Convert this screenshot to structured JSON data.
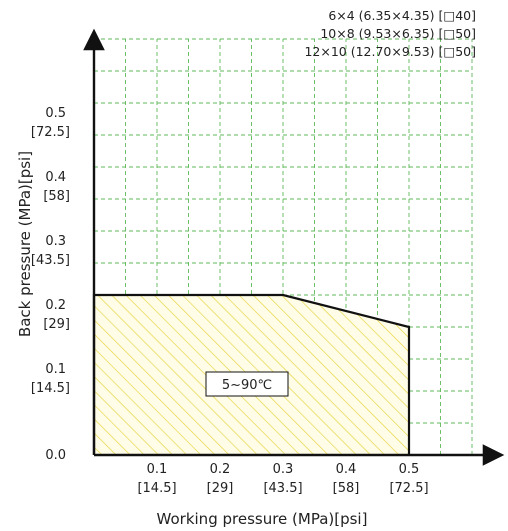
{
  "chart_data": {
    "type": "area",
    "title": "",
    "xlabel": "Working pressure (MPa)[psi]",
    "ylabel": "Back pressure (MPa)[psi]",
    "xlim": [
      0,
      0.6
    ],
    "ylim": [
      0,
      0.65
    ],
    "x_ticks": [
      {
        "value": 0.1,
        "mpa": "0.1",
        "psi": "[14.5]"
      },
      {
        "value": 0.2,
        "mpa": "0.2",
        "psi": "[29]"
      },
      {
        "value": 0.3,
        "mpa": "0.3",
        "psi": "[43.5]"
      },
      {
        "value": 0.4,
        "mpa": "0.4",
        "psi": "[58]"
      },
      {
        "value": 0.5,
        "mpa": "0.5",
        "psi": "[72.5]"
      }
    ],
    "y_ticks": [
      {
        "value": 0.0,
        "mpa": "0.0",
        "psi": ""
      },
      {
        "value": 0.1,
        "mpa": "0.1",
        "psi": "[14.5]"
      },
      {
        "value": 0.2,
        "mpa": "0.2",
        "psi": "[29]"
      },
      {
        "value": 0.3,
        "mpa": "0.3",
        "psi": "[43.5]"
      },
      {
        "value": 0.4,
        "mpa": "0.4",
        "psi": "[58]"
      },
      {
        "value": 0.5,
        "mpa": "0.5",
        "psi": "[72.5]"
      }
    ],
    "grid": true,
    "grid_step": 0.05,
    "legend_position": "top-right",
    "legend_lines": [
      "6×4 (6.35×4.35) [□40]",
      "10×8 (9.53×6.35) [□50]",
      "12×10 (12.70×9.53) [□50]"
    ],
    "region": {
      "points": [
        [
          0,
          0
        ],
        [
          0,
          0.25
        ],
        [
          0.3,
          0.25
        ],
        [
          0.5,
          0.2
        ],
        [
          0.5,
          0
        ]
      ],
      "label": "5~90℃"
    },
    "colors": {
      "grid": "#5fba58",
      "hatch": "#e6d23c",
      "region_fill": "#fffde8",
      "outline": "#111111",
      "axis": "#111111"
    }
  }
}
